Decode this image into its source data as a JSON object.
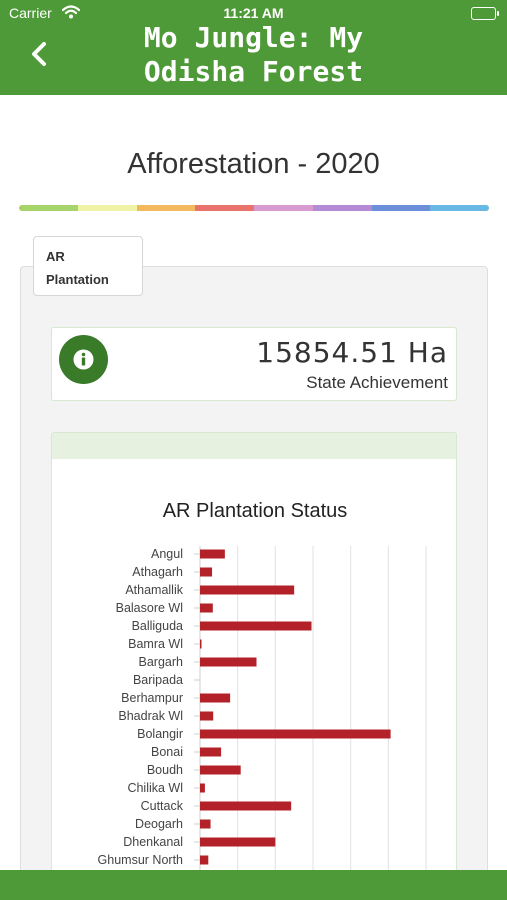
{
  "status_bar": {
    "carrier": "Carrier",
    "time": "11:21 AM"
  },
  "header": {
    "title_line1": "Mo Jungle: My",
    "title_line2": "Odisha Forest"
  },
  "page": {
    "title": "Afforestation - 2020"
  },
  "rainbow_colors": [
    "#a6d36a",
    "#eef3a6",
    "#f4b95c",
    "#e8736a",
    "#d79bd0",
    "#b58bd6",
    "#6d8ed9",
    "#67b9e3"
  ],
  "tabs": [
    {
      "label_line1": "AR",
      "label_line2": "Plantation"
    }
  ],
  "stat": {
    "icon": "info-icon",
    "value": "15854.51 Ha",
    "label": "State Achievement"
  },
  "colors": {
    "brand": "#4f9a38",
    "bar": "#b22228",
    "icon_bg": "#3a7b2a"
  },
  "chart_data": {
    "type": "bar",
    "orientation": "horizontal",
    "title": "AR Plantation Status",
    "categories": [
      "Angul",
      "Athagarh",
      "Athamallik",
      "Balasore Wl",
      "Balliguda",
      "Bamra Wl",
      "Bargarh",
      "Baripada",
      "Berhampur",
      "Bhadrak Wl",
      "Bolangir",
      "Bonai",
      "Boudh",
      "Chilika Wl",
      "Cuttack",
      "Deogarh",
      "Dhenkanal",
      "Ghumsur North"
    ],
    "series": [
      {
        "values": [
          330,
          160,
          1250,
          170,
          1480,
          20,
          750,
          0,
          400,
          175,
          2530,
          280,
          540,
          65,
          1210,
          140,
          1000,
          110
        ]
      }
    ],
    "xlim": [
      0,
      3000
    ],
    "grid": true
  }
}
